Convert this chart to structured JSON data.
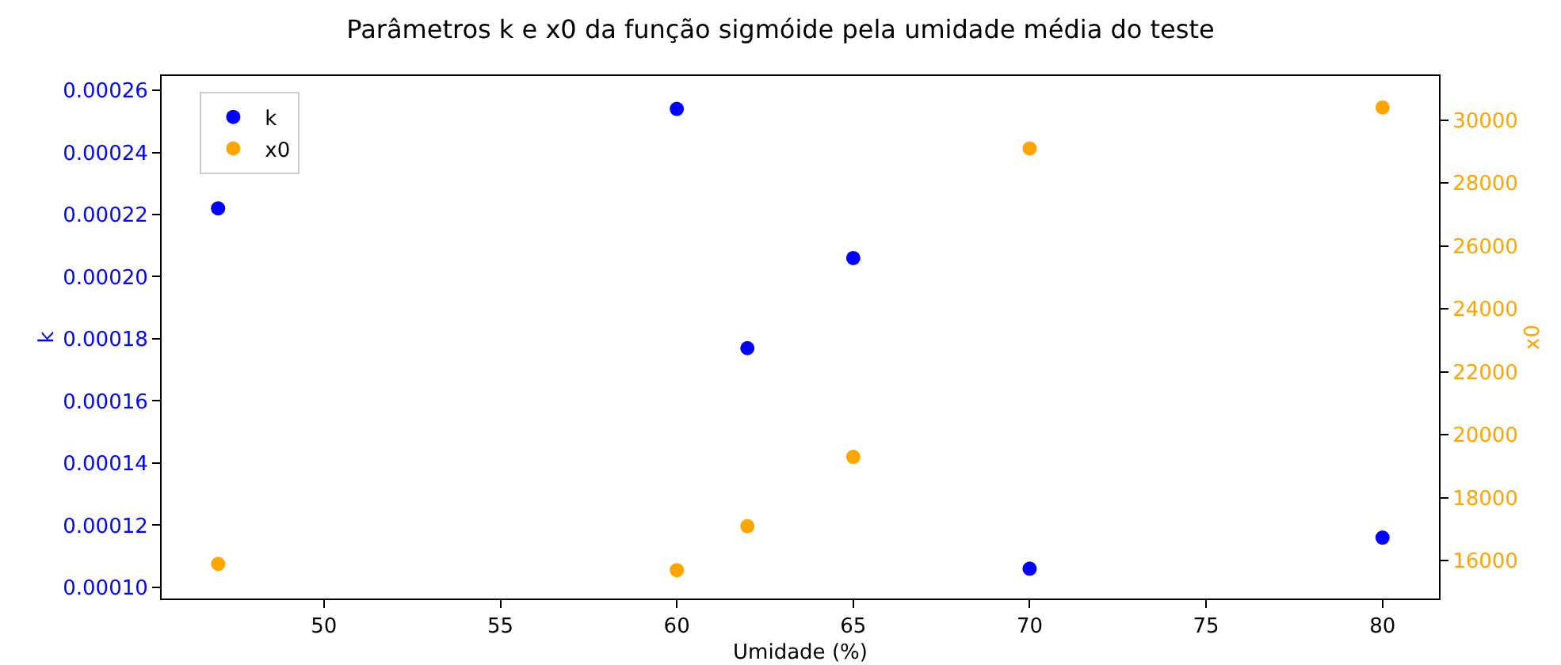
{
  "chart_data": {
    "type": "scatter",
    "title": "Parâmetros k e x0 da função sigmóide pela umidade média do teste",
    "xlabel": "Umidade (%)",
    "ylabel": "k",
    "y2label": "x0",
    "x": [
      47,
      60,
      62,
      65,
      70,
      80
    ],
    "series": [
      {
        "name": "k",
        "color": "#0000ff",
        "values": [
          0.000222,
          0.000254,
          0.000177,
          0.000206,
          0.000106,
          0.000116
        ]
      },
      {
        "name": "x0",
        "color": "#ffa500",
        "axis": "y2",
        "values": [
          15900,
          15700,
          17100,
          19300,
          29100,
          30400
        ]
      }
    ],
    "xlim": [
      45.4,
      81.6
    ],
    "xticks": [
      50,
      55,
      60,
      65,
      70,
      75,
      80
    ],
    "ylim": [
      9.64e-05,
      0.0002646
    ],
    "yticks": [
      {
        "value": 0.0001,
        "label": "0.00010"
      },
      {
        "value": 0.00012,
        "label": "0.00012"
      },
      {
        "value": 0.00014,
        "label": "0.00014"
      },
      {
        "value": 0.00016,
        "label": "0.00016"
      },
      {
        "value": 0.00018,
        "label": "0.00018"
      },
      {
        "value": 0.0002,
        "label": "0.00020"
      },
      {
        "value": 0.00022,
        "label": "0.00022"
      },
      {
        "value": 0.00024,
        "label": "0.00024"
      },
      {
        "value": 0.00026,
        "label": "0.00026"
      }
    ],
    "y2lim": [
      14800,
      31400
    ],
    "y2ticks": [
      16000,
      18000,
      20000,
      22000,
      24000,
      26000,
      28000,
      30000
    ],
    "legend": "top left",
    "marker": "circle",
    "grid": false
  }
}
